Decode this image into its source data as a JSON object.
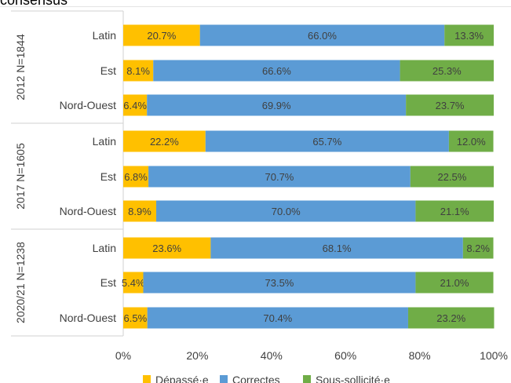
{
  "partial_title": "consensus",
  "chart_data": {
    "type": "bar",
    "orientation": "horizontal",
    "stacked": true,
    "percent": true,
    "groups": [
      {
        "label": "2012 N=1844",
        "categories": [
          "Latin",
          "Est",
          "Nord-Ouest"
        ]
      },
      {
        "label": "2017 N=1605",
        "categories": [
          "Latin",
          "Est",
          "Nord-Ouest"
        ]
      },
      {
        "label": "2020/21 N=1238",
        "categories": [
          "Latin",
          "Est",
          "Nord-Ouest"
        ]
      }
    ],
    "series": [
      {
        "name": "Dépassé·e",
        "color": "#FFC000",
        "values": [
          20.7,
          8.1,
          6.4,
          22.2,
          6.8,
          8.9,
          23.6,
          5.4,
          6.5
        ],
        "labels": [
          "20.7%",
          "8.1%",
          "6.4%",
          "22.2%",
          "6.8%",
          "8.9%",
          "23.6%",
          "5.4%",
          "6.5%"
        ]
      },
      {
        "name": "Correctes",
        "color": "#5B9BD5",
        "values": [
          66.0,
          66.6,
          69.9,
          65.7,
          70.7,
          70.0,
          68.1,
          73.5,
          70.4
        ],
        "labels": [
          "66.0%",
          "66.6%",
          "69.9%",
          "65.7%",
          "70.7%",
          "70.0%",
          "68.1%",
          "73.5%",
          "70.4%"
        ]
      },
      {
        "name": "Sous-sollicité·e",
        "color": "#70AD47",
        "values": [
          13.3,
          25.3,
          23.7,
          12.0,
          22.5,
          21.1,
          8.2,
          21.0,
          23.2
        ],
        "labels": [
          "13.3%",
          "25.3%",
          "23.7%",
          "12.0%",
          "22.5%",
          "21.1%",
          "8.2%",
          "21.0%",
          "23.2%"
        ]
      }
    ],
    "xlim": [
      0,
      100
    ],
    "xticks": [
      "0%",
      "20%",
      "40%",
      "60%",
      "80%",
      "100%"
    ],
    "grid": false,
    "legend_position": "bottom"
  }
}
